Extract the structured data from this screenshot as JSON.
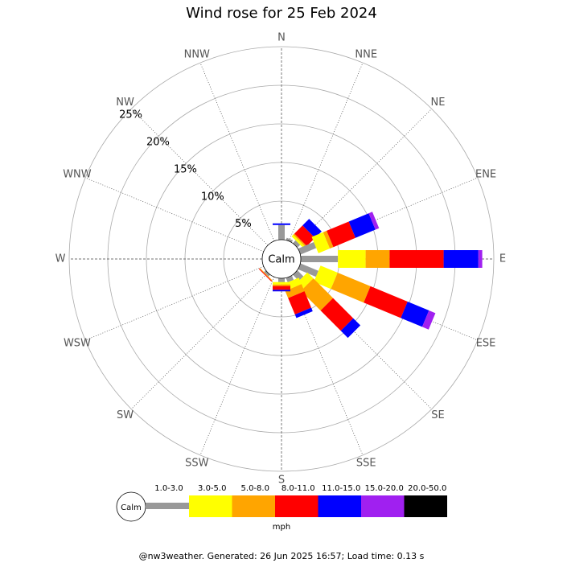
{
  "chart_data": {
    "type": "windrose",
    "title": "Wind rose for 25 Feb 2024",
    "directions": [
      "N",
      "NNE",
      "NE",
      "ENE",
      "E",
      "ESE",
      "SE",
      "SSE",
      "S",
      "SSW",
      "SW",
      "WSW",
      "W",
      "WNW",
      "NW",
      "NNW"
    ],
    "calm_label": "Calm",
    "unit": "mph",
    "rlim": [
      0,
      25
    ],
    "rticks": [
      {
        "value": 5,
        "label": "5%"
      },
      {
        "value": 10,
        "label": "10%"
      },
      {
        "value": 15,
        "label": "15%"
      },
      {
        "value": 20,
        "label": "20%"
      },
      {
        "value": 25,
        "label": "25%"
      }
    ],
    "series": [
      {
        "name": "1.0-3.0",
        "color": "#999999",
        "values": [
          1.9,
          0.3,
          0.5,
          2.2,
          4.8,
          2.5,
          1.1,
          0.6,
          0.5,
          0,
          0.3,
          0,
          0,
          0,
          0,
          0
        ]
      },
      {
        "name": "3.0-5.0",
        "color": "#ffff00",
        "values": [
          0,
          0,
          0.3,
          1.6,
          3.6,
          2.4,
          1.1,
          0.9,
          0.3,
          0,
          0,
          0,
          0,
          0,
          0,
          0
        ]
      },
      {
        "name": "5.0-8.0",
        "color": "#ffa500",
        "values": [
          0,
          0,
          0.2,
          0.5,
          3.1,
          4.6,
          3.6,
          1.0,
          0.2,
          0,
          0.1,
          0,
          0,
          0,
          0,
          0
        ]
      },
      {
        "name": "8.0-11.0",
        "color": "#ff0000",
        "values": [
          0,
          0,
          1.5,
          3.1,
          7.0,
          5.2,
          3.7,
          2.3,
          0.5,
          0,
          0.1,
          0,
          0,
          0,
          0,
          0
        ]
      },
      {
        "name": "11.0-15.0",
        "color": "#0000ff",
        "values": [
          0.2,
          0,
          1.2,
          2.8,
          4.5,
          3.0,
          1.3,
          0.5,
          0.2,
          0,
          0,
          0,
          0,
          0,
          0,
          0
        ]
      },
      {
        "name": "15.0-20.0",
        "color": "#a020f0",
        "values": [
          0,
          0,
          0,
          0.5,
          0.5,
          0.9,
          0,
          0,
          0,
          0,
          0,
          0,
          0,
          0,
          0,
          0
        ]
      },
      {
        "name": "20.0-50.0",
        "color": "#000000",
        "values": [
          0,
          0,
          0,
          0,
          0,
          0,
          0,
          0,
          0,
          0,
          0,
          0,
          0,
          0,
          0,
          0
        ]
      }
    ]
  },
  "footer": "@nw3weather. Generated: 26 Jun 2025 16:57; Load time: 0.13 s"
}
